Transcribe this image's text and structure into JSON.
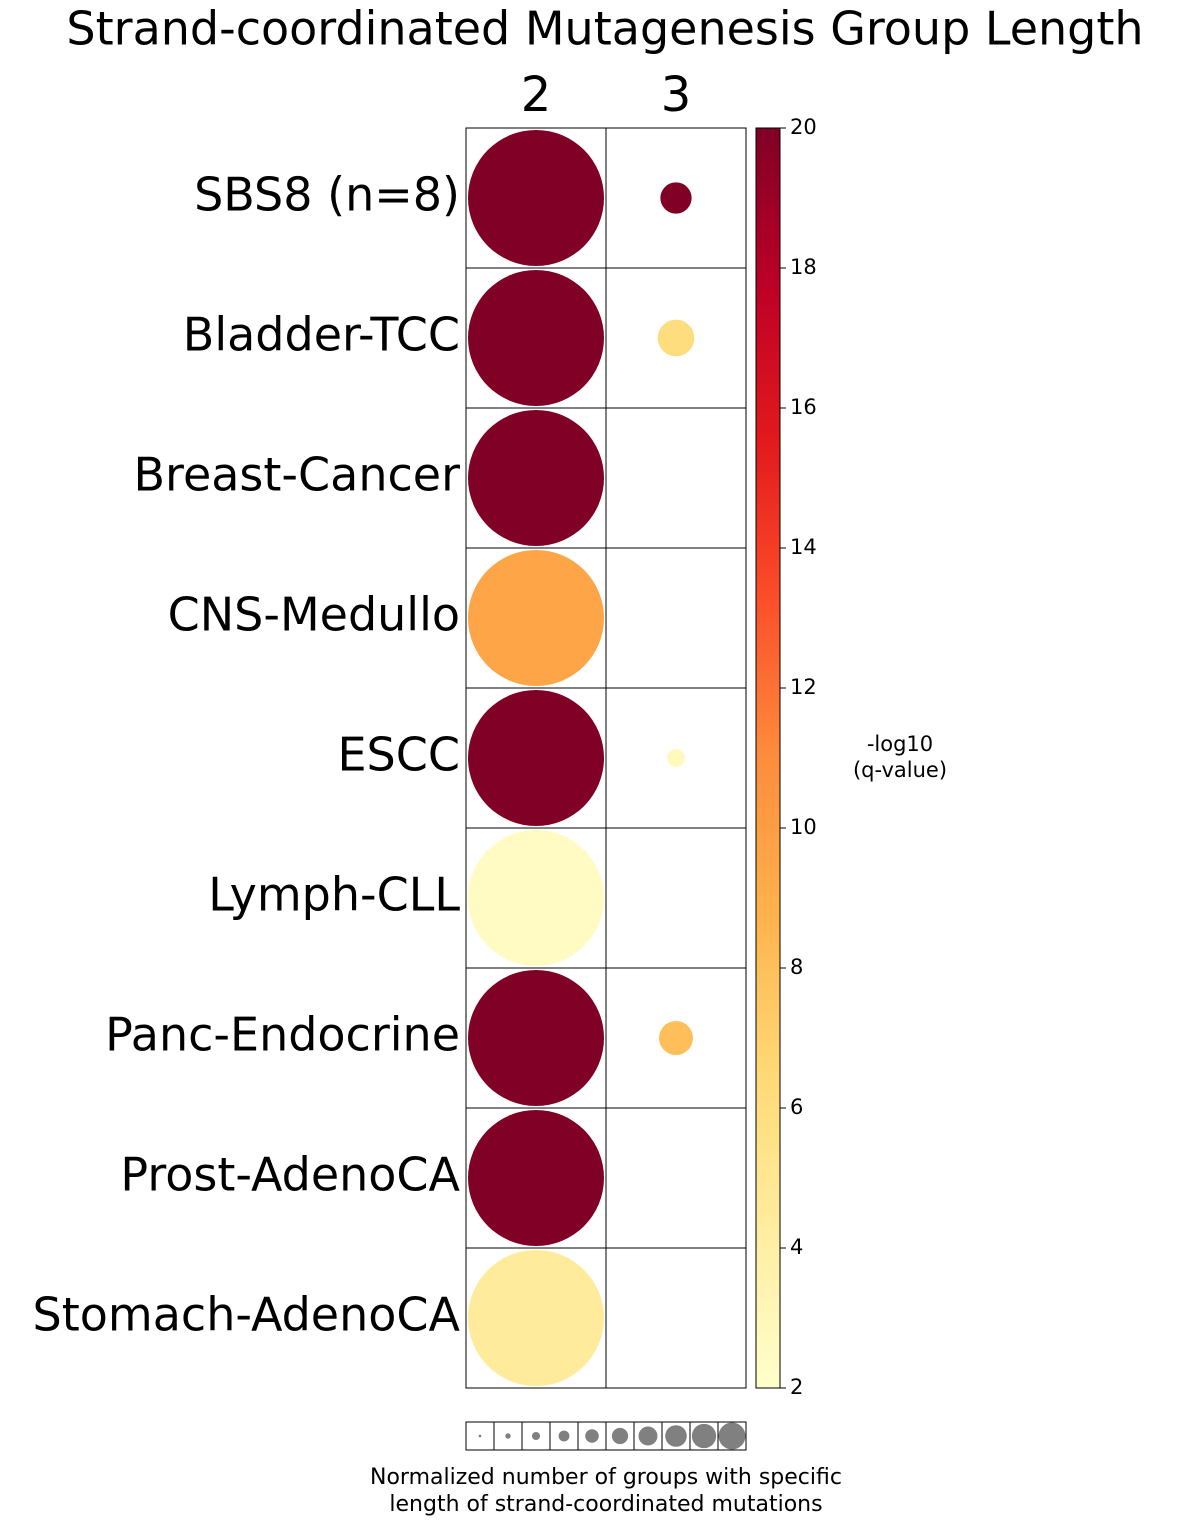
{
  "chart_data": {
    "type": "bubble-grid",
    "title": "Strand-coordinated Mutagenesis Group Length",
    "columns": [
      "2",
      "3"
    ],
    "rows": [
      "SBS8 (n=8)",
      "Bladder-TCC",
      "Breast-Cancer",
      "CNS-Medullo",
      "ESCC",
      "Lymph-CLL",
      "Panc-Endocrine",
      "Prost-AdenoCA",
      "Stomach-AdenoCA"
    ],
    "color_values": [
      [
        20,
        20
      ],
      [
        20,
        6
      ],
      [
        20,
        null
      ],
      [
        9.5,
        null
      ],
      [
        20,
        2.8
      ],
      [
        2.5,
        null
      ],
      [
        20,
        8
      ],
      [
        20,
        null
      ],
      [
        4.5,
        null
      ]
    ],
    "size_values": [
      [
        1.0,
        0.23
      ],
      [
        1.0,
        0.27
      ],
      [
        1.0,
        null
      ],
      [
        1.0,
        null
      ],
      [
        1.0,
        0.13
      ],
      [
        1.0,
        null
      ],
      [
        1.0,
        0.25
      ],
      [
        1.0,
        null
      ],
      [
        1.0,
        null
      ]
    ],
    "colormap": "YlOrRd",
    "clim": [
      2,
      20
    ],
    "cticks": [
      2,
      4,
      6,
      8,
      10,
      12,
      14,
      16,
      18,
      20
    ],
    "colorbar_label": [
      "-log10",
      "(q-value)"
    ],
    "size_legend": [
      0.1,
      0.2,
      0.3,
      0.4,
      0.5,
      0.6,
      0.7,
      0.8,
      0.9,
      1.0
    ],
    "size_legend_color": "#808080",
    "size_legend_label": [
      "Normalized number of groups with specific",
      "length of strand-coordinated mutations"
    ]
  }
}
